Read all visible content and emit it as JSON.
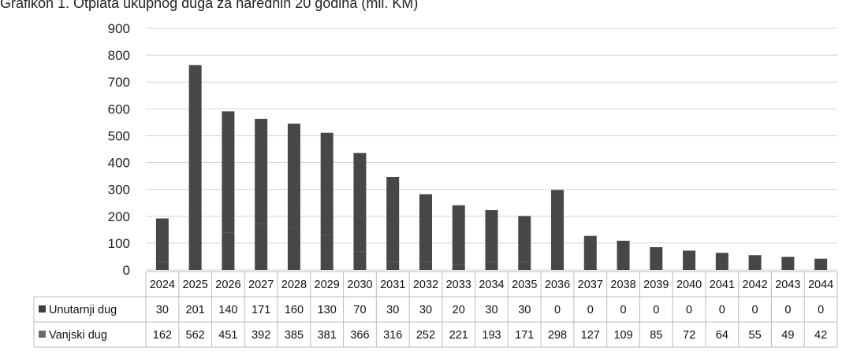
{
  "title": "Grafikon 1. Otplata ukupnog duga za narednih 20 godina (mil. KM)",
  "colors": {
    "bar": "#474747",
    "unutarnji_marker": "#3f3f3f",
    "vanjski_marker": "#6a6a6a",
    "grid": "#d4d4d4",
    "table_border": "#bcbcbc"
  },
  "chart_data": {
    "type": "bar",
    "title": "Grafikon 1. Otplata ukupnog duga za narednih 20 godina (mil. KM)",
    "xlabel": "",
    "ylabel": "",
    "ylim": [
      0,
      900
    ],
    "yticks": [
      0,
      100,
      200,
      300,
      400,
      500,
      600,
      700,
      800,
      900
    ],
    "grid": true,
    "legend": "data-table",
    "stacked": true,
    "categories": [
      "2024",
      "2025",
      "2026",
      "2027",
      "2028",
      "2029",
      "2030",
      "2031",
      "2032",
      "2033",
      "2034",
      "2035",
      "2036",
      "2037",
      "2038",
      "2039",
      "2040",
      "2041",
      "2042",
      "2043",
      "2044"
    ],
    "series": [
      {
        "name": "Unutarnji dug",
        "values": [
          30,
          201,
          140,
          171,
          160,
          130,
          70,
          30,
          30,
          20,
          30,
          30,
          0,
          0,
          0,
          0,
          0,
          0,
          0,
          0,
          0
        ]
      },
      {
        "name": "Vanjski dug",
        "values": [
          162,
          562,
          451,
          392,
          385,
          381,
          366,
          316,
          252,
          221,
          193,
          171,
          298,
          127,
          109,
          85,
          72,
          64,
          55,
          49,
          42
        ]
      }
    ]
  }
}
